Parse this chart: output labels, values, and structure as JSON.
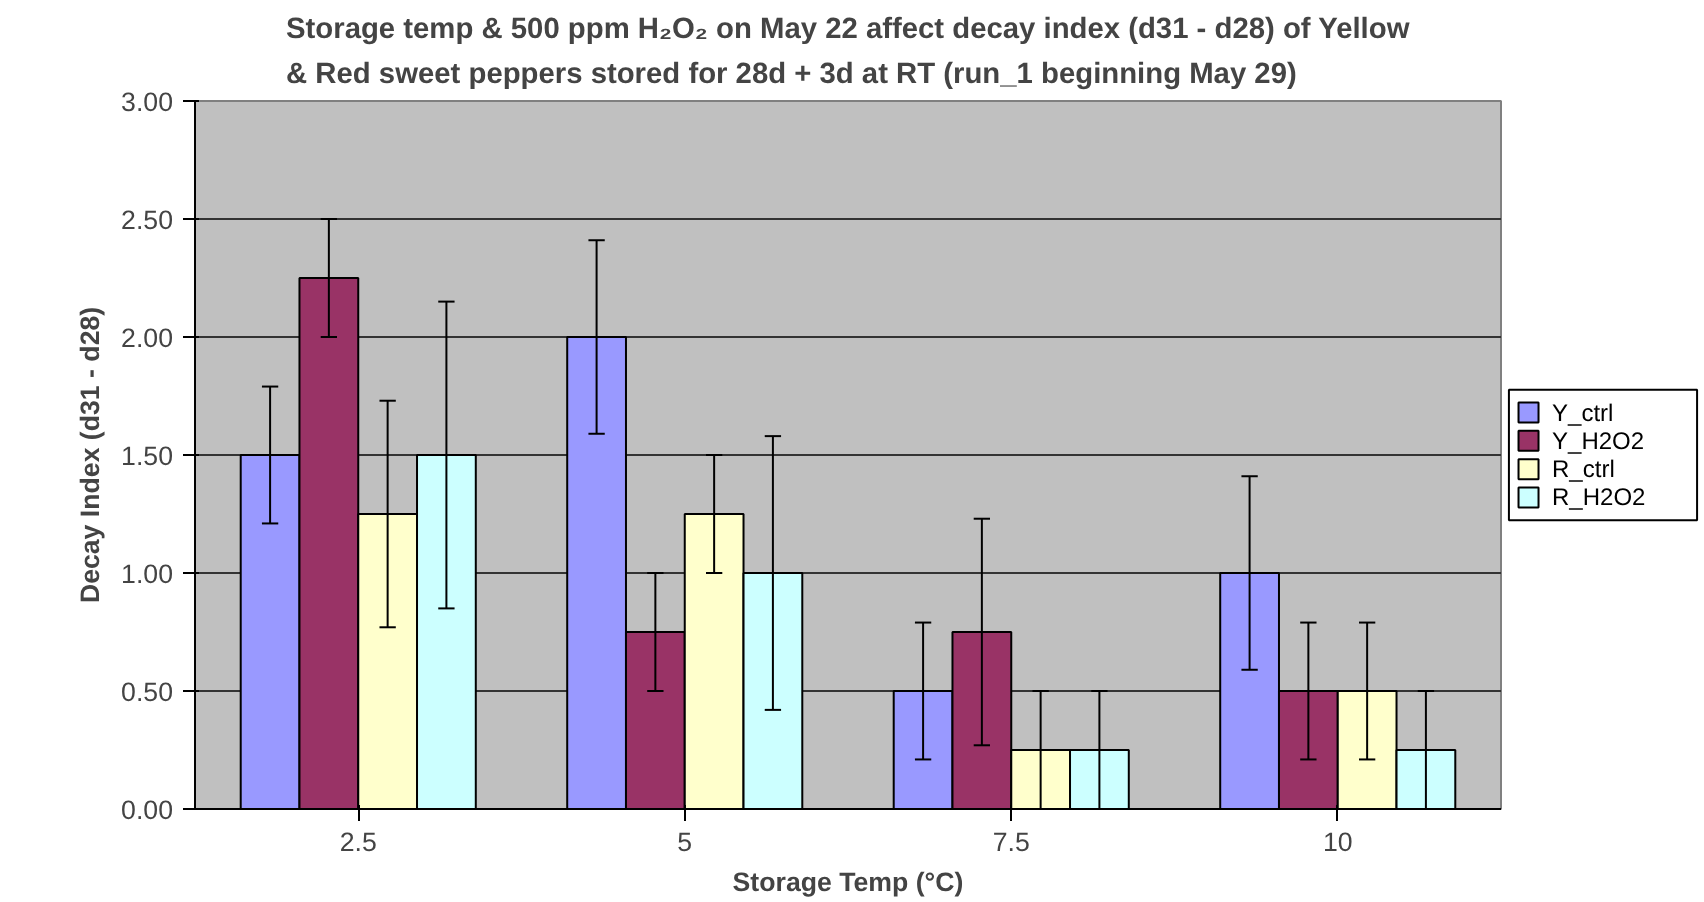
{
  "chart_data": {
    "type": "bar",
    "title": "Storage temp & 500 ppm H₂O₂ on May 22 affect decay index (d31 - d28) of Yellow\n& Red sweet peppers stored for 28d + 3d at RT (run_1 beginning May 29)",
    "xlabel": "Storage Temp (°C)",
    "ylabel": "Decay Index (d31 - d28)",
    "categories": [
      "2.5",
      "5",
      "7.5",
      "10"
    ],
    "series": [
      {
        "name": "Y_ctrl",
        "color": "#9999ff",
        "values": [
          1.5,
          2.0,
          0.5,
          1.0
        ],
        "errors": [
          0.29,
          0.41,
          0.29,
          0.41
        ]
      },
      {
        "name": "Y_H2O2",
        "color": "#993366",
        "values": [
          2.25,
          0.75,
          0.75,
          0.5
        ],
        "errors": [
          0.25,
          0.25,
          0.48,
          0.29
        ]
      },
      {
        "name": "R_ctrl",
        "color": "#ffffcc",
        "values": [
          1.25,
          1.25,
          0.25,
          0.5
        ],
        "errors": [
          0.48,
          0.25,
          0.25,
          0.29
        ]
      },
      {
        "name": "R_H2O2",
        "color": "#ccffff",
        "values": [
          1.5,
          1.0,
          0.25,
          0.25
        ],
        "errors": [
          0.65,
          0.58,
          0.25,
          0.25
        ]
      }
    ],
    "ylim": [
      0,
      3
    ],
    "yticks": [
      {
        "value": 0,
        "label": "0.00"
      },
      {
        "value": 0.5,
        "label": "0.50"
      },
      {
        "value": 1,
        "label": "1.00"
      },
      {
        "value": 1.5,
        "label": "1.50"
      },
      {
        "value": 2,
        "label": "2.00"
      },
      {
        "value": 2.5,
        "label": "2.50"
      },
      {
        "value": 3,
        "label": "3.00"
      }
    ],
    "grid": "y",
    "legend": "right"
  }
}
